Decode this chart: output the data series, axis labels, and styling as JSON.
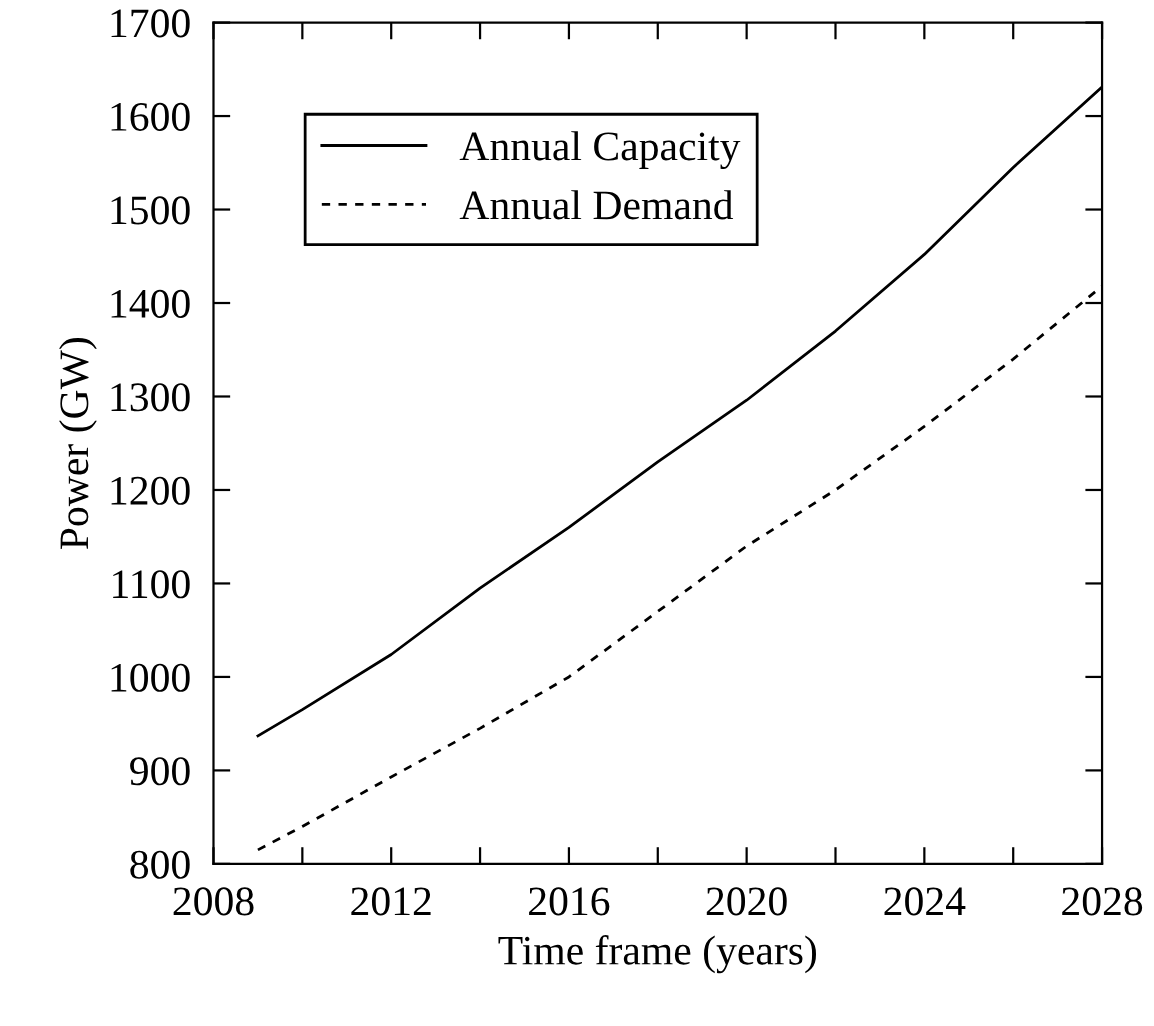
{
  "chart_data": {
    "type": "line",
    "xlabel": "Time frame (years)",
    "ylabel": "Power (GW)",
    "xlim": [
      2008,
      2028
    ],
    "ylim": [
      800,
      1700
    ],
    "xticks": [
      2008,
      {
        "value": 2010,
        "label": null
      },
      2012,
      {
        "value": 2014,
        "label": null
      },
      2016,
      {
        "value": 2018,
        "label": null
      },
      2020,
      {
        "value": 2022,
        "label": null
      },
      2024,
      {
        "value": 2026,
        "label": null
      },
      2028
    ],
    "yticks": [
      800,
      900,
      1000,
      1100,
      1200,
      1300,
      1400,
      1500,
      1600,
      1700
    ],
    "legend": "top left",
    "grid": false,
    "marker": "none",
    "series": [
      {
        "name": "Annual Capacity",
        "color": "#000000",
        "line_style": "solid",
        "x": [
          2009,
          2010,
          2012,
          2014,
          2016,
          2018,
          2020,
          2022,
          2024,
          2026,
          2028
        ],
        "values": [
          937,
          965,
          1024,
          1095,
          1160,
          1230,
          1296,
          1370,
          1452,
          1545,
          1631
        ]
      },
      {
        "name": "Annual Demand",
        "color": "#000000",
        "line_style": "dashed",
        "x": [
          2009,
          2010,
          2012,
          2014,
          2016,
          2018,
          2020,
          2022,
          2024,
          2026,
          2028
        ],
        "values": [
          815,
          840,
          893,
          945,
          1000,
          1070,
          1140,
          1200,
          1268,
          1340,
          1418
        ]
      }
    ]
  }
}
